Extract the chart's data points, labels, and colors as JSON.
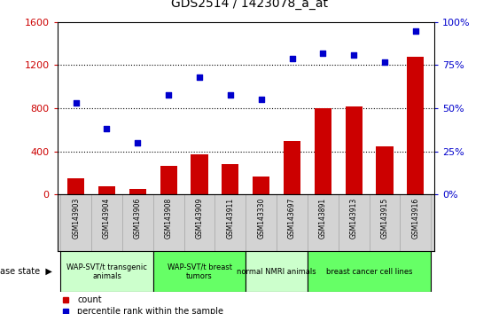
{
  "title": "GDS2514 / 1423078_a_at",
  "samples": [
    "GSM143903",
    "GSM143904",
    "GSM143906",
    "GSM143908",
    "GSM143909",
    "GSM143911",
    "GSM143330",
    "GSM143697",
    "GSM143891",
    "GSM143913",
    "GSM143915",
    "GSM143916"
  ],
  "count_values": [
    150,
    75,
    50,
    270,
    370,
    285,
    165,
    500,
    800,
    820,
    450,
    1280
  ],
  "percentile_values": [
    53,
    38,
    30,
    58,
    68,
    58,
    55,
    79,
    82,
    81,
    77,
    95
  ],
  "bar_color": "#cc0000",
  "dot_color": "#0000cc",
  "left_ylim": [
    0,
    1600
  ],
  "right_ylim": [
    0,
    100
  ],
  "left_yticks": [
    0,
    400,
    800,
    1200,
    1600
  ],
  "right_yticks": [
    0,
    25,
    50,
    75,
    100
  ],
  "right_yticklabels": [
    "0%",
    "25%",
    "50%",
    "75%",
    "100%"
  ],
  "groups": [
    {
      "label": "WAP-SVT/t transgenic\nanimals",
      "start": 0,
      "end": 3,
      "color": "#ccffcc"
    },
    {
      "label": "WAP-SVT/t breast\ntumors",
      "start": 3,
      "end": 6,
      "color": "#66ff66"
    },
    {
      "label": "normal NMRI animals",
      "start": 6,
      "end": 8,
      "color": "#ccffcc"
    },
    {
      "label": "breast cancer cell lines",
      "start": 8,
      "end": 12,
      "color": "#66ff66"
    }
  ],
  "disease_state_label": "disease state",
  "legend_count_label": "count",
  "legend_percentile_label": "percentile rank within the sample",
  "background_color": "#ffffff",
  "tick_label_color_left": "#cc0000",
  "tick_label_color_right": "#0000cc",
  "xlabel_row_bg": "#d3d3d3",
  "bar_width": 0.55
}
